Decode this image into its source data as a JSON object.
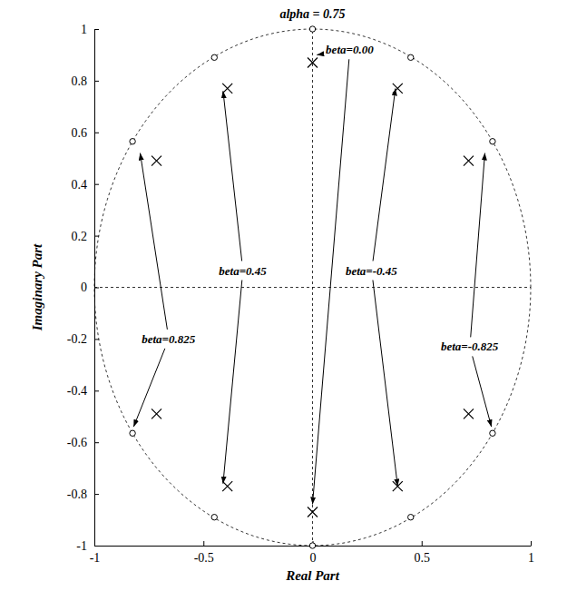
{
  "chart_data": {
    "type": "pole-zero",
    "title": "alpha = 0.75",
    "x_label": "Real Part",
    "y_label": "Imaginary Part",
    "xlim": [
      -1,
      1
    ],
    "ylim": [
      -1,
      1
    ],
    "xticks": [
      -1,
      -0.5,
      0,
      0.5,
      1
    ],
    "yticks": [
      -1,
      -0.8,
      -0.6,
      -0.4,
      -0.2,
      0,
      0.2,
      0.4,
      0.6,
      0.8,
      1
    ],
    "grid": false,
    "series": [
      {
        "type": "scatter",
        "marker": "circle",
        "color": "#000000",
        "x": [
          0,
          0,
          -0.45,
          -0.45,
          0.45,
          0.45,
          -0.825,
          -0.825,
          0.825,
          0.825
        ],
        "values": [
          1,
          -1,
          0.89,
          -0.89,
          0.89,
          -0.89,
          0.565,
          -0.565,
          0.565,
          -0.565
        ]
      },
      {
        "type": "scatter",
        "marker": "x",
        "color": "#000000",
        "x": [
          0,
          0,
          -0.39,
          -0.39,
          0.39,
          0.39,
          -0.715,
          -0.715,
          0.715,
          0.715
        ],
        "values": [
          0.87,
          -0.87,
          0.77,
          -0.77,
          0.77,
          -0.77,
          0.49,
          -0.49,
          0.49,
          -0.49
        ]
      }
    ],
    "annotations": [
      {
        "text": "beta=0.00",
        "x": 0.17,
        "y": 0.92,
        "arrow_x": [
          0.02,
          0
        ],
        "arrow_y": [
          0.9,
          -0.84
        ]
      },
      {
        "text": "beta=0.45",
        "x": -0.32,
        "y": 0.065,
        "arrow_x": [
          -0.41,
          -0.41
        ],
        "arrow_y": [
          0.76,
          -0.76
        ]
      },
      {
        "text": "beta=-0.45",
        "x": 0.27,
        "y": 0.065,
        "arrow_x": [
          0.38,
          0.39
        ],
        "arrow_y": [
          0.77,
          -0.77
        ]
      },
      {
        "text": "beta=0.825",
        "x": -0.66,
        "y": -0.2,
        "arrow_x": [
          -0.79,
          -0.82
        ],
        "arrow_y": [
          0.52,
          -0.54
        ]
      },
      {
        "text": "beta=-0.825",
        "x": 0.72,
        "y": -0.23,
        "arrow_x": [
          0.79,
          0.82
        ],
        "arrow_y": [
          0.52,
          -0.54
        ]
      }
    ]
  }
}
